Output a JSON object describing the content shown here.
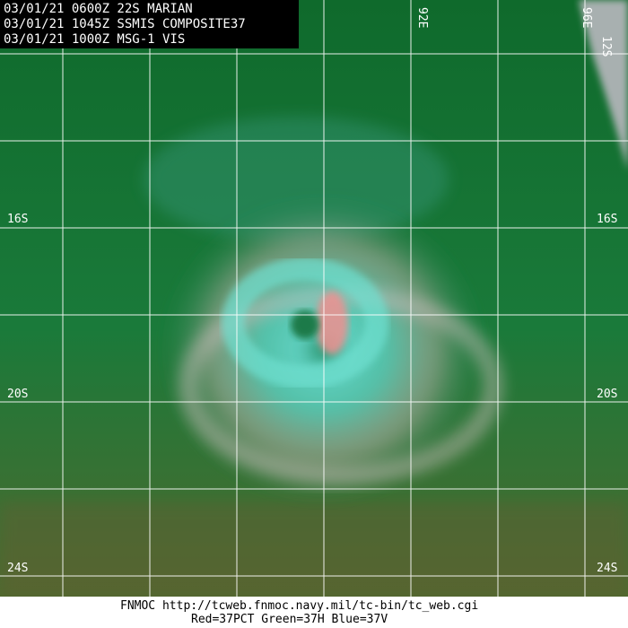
{
  "header": {
    "lines": [
      "03/01/21 0600Z  22S MARIAN",
      "03/01/21 1045Z  SSMIS COMPOSITE37",
      "03/01/21 1000Z  MSG-1 VIS"
    ]
  },
  "longitude_labels": [
    "92E",
    "96E"
  ],
  "latitude_labels": [
    "12S",
    "16S",
    "20S",
    "24S"
  ],
  "footer": {
    "source": "FNMOC  http://tcweb.fnmoc.navy.mil/tc-bin/tc_web.cgi",
    "channels": "Red=37PCT  Green=37H  Blue=37V"
  }
}
